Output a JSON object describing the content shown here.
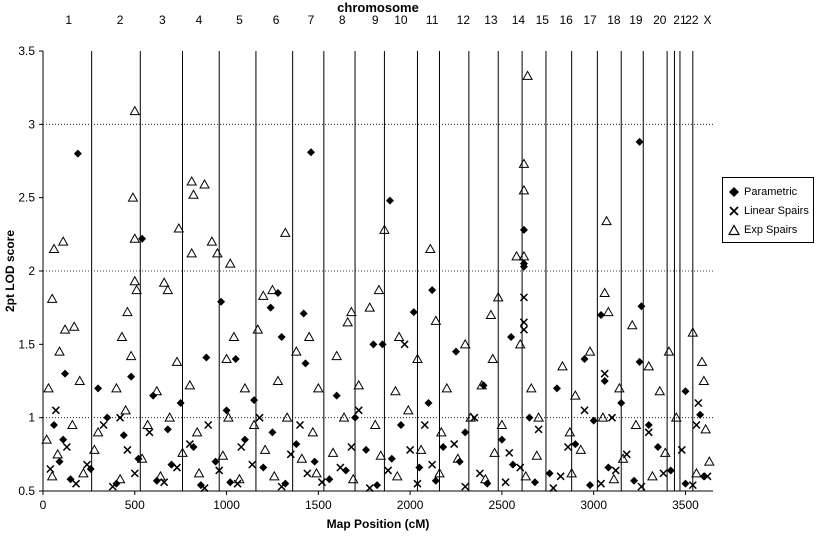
{
  "chart_data": {
    "type": "scatter",
    "title": "chromosome",
    "xlabel": "Map Position (cM)",
    "ylabel": "2pt LOD score",
    "xlim": [
      0,
      3650
    ],
    "ylim": [
      0.5,
      3.5
    ],
    "x_ticks": [
      0,
      500,
      1000,
      1500,
      2000,
      2500,
      3000,
      3500
    ],
    "y_ticks": [
      0.5,
      1,
      1.5,
      2,
      2.5,
      3,
      3.5
    ],
    "y_tick_labels": [
      "0.5",
      "1",
      "1.5",
      "2",
      "2.5",
      "3",
      "3.5"
    ],
    "gridlines_y": [
      1,
      2,
      3
    ],
    "grid_style": "dotted",
    "legend_position": "right",
    "chromosomes": {
      "labels": [
        "1",
        "2",
        "3",
        "4",
        "5",
        "6",
        "7",
        "8",
        "9",
        "10",
        "11",
        "12",
        "13",
        "14",
        "15",
        "16",
        "17",
        "18",
        "19",
        "20",
        "21",
        "22",
        "X"
      ],
      "label_positions": [
        140,
        420,
        650,
        850,
        1070,
        1270,
        1460,
        1630,
        1810,
        1950,
        2120,
        2290,
        2440,
        2590,
        2720,
        2850,
        2980,
        3110,
        3230,
        3360,
        3470,
        3535,
        3620
      ],
      "boundaries": [
        265,
        530,
        760,
        960,
        1160,
        1360,
        1530,
        1700,
        1860,
        2040,
        2160,
        2320,
        2480,
        2610,
        2740,
        2880,
        3020,
        3150,
        3270,
        3400,
        3440,
        3470,
        3540
      ]
    },
    "series": [
      {
        "name": "Parametric",
        "marker": "diamond",
        "color": "#000000",
        "points": [
          [
            190,
            2.8
          ],
          [
            540,
            2.22
          ],
          [
            1460,
            2.81
          ],
          [
            1890,
            2.48
          ],
          [
            2120,
            1.87
          ],
          [
            2620,
            2.28
          ],
          [
            2620,
            2.05
          ],
          [
            2620,
            2.03
          ],
          [
            3250,
            2.88
          ],
          [
            3260,
            1.76
          ],
          [
            1280,
            1.85
          ],
          [
            1240,
            1.75
          ],
          [
            970,
            1.79
          ],
          [
            1420,
            1.71
          ],
          [
            2020,
            1.72
          ],
          [
            3040,
            1.7
          ],
          [
            1300,
            1.55
          ],
          [
            1800,
            1.5
          ],
          [
            1850,
            1.5
          ],
          [
            120,
            1.3
          ],
          [
            480,
            1.28
          ],
          [
            890,
            1.41
          ],
          [
            1050,
            1.4
          ],
          [
            1430,
            1.37
          ],
          [
            2250,
            1.45
          ],
          [
            2550,
            1.55
          ],
          [
            2950,
            1.4
          ],
          [
            3060,
            1.25
          ],
          [
            3250,
            1.38
          ],
          [
            300,
            1.2
          ],
          [
            600,
            1.15
          ],
          [
            750,
            1.1
          ],
          [
            1150,
            1.12
          ],
          [
            1600,
            1.15
          ],
          [
            2100,
            1.1
          ],
          [
            2400,
            1.22
          ],
          [
            2800,
            1.2
          ],
          [
            3150,
            1.1
          ],
          [
            3500,
            1.18
          ],
          [
            60,
            0.95
          ],
          [
            350,
            1.0
          ],
          [
            680,
            0.92
          ],
          [
            1000,
            1.05
          ],
          [
            1250,
            0.9
          ],
          [
            1700,
            1.0
          ],
          [
            1950,
            0.95
          ],
          [
            2300,
            0.9
          ],
          [
            2650,
            1.0
          ],
          [
            3000,
            0.98
          ],
          [
            3300,
            0.95
          ],
          [
            3580,
            1.02
          ],
          [
            110,
            0.85
          ],
          [
            440,
            0.88
          ],
          [
            820,
            0.8
          ],
          [
            1100,
            0.85
          ],
          [
            1380,
            0.82
          ],
          [
            1760,
            0.78
          ],
          [
            2180,
            0.8
          ],
          [
            2500,
            0.85
          ],
          [
            2900,
            0.82
          ],
          [
            3350,
            0.8
          ],
          [
            90,
            0.7
          ],
          [
            260,
            0.65
          ],
          [
            520,
            0.72
          ],
          [
            700,
            0.68
          ],
          [
            940,
            0.7
          ],
          [
            1200,
            0.66
          ],
          [
            1480,
            0.7
          ],
          [
            1650,
            0.64
          ],
          [
            1900,
            0.72
          ],
          [
            2050,
            0.66
          ],
          [
            2270,
            0.7
          ],
          [
            2560,
            0.68
          ],
          [
            2760,
            0.62
          ],
          [
            3080,
            0.66
          ],
          [
            3420,
            0.64
          ],
          [
            3600,
            0.6
          ],
          [
            150,
            0.58
          ],
          [
            400,
            0.55
          ],
          [
            620,
            0.57
          ],
          [
            860,
            0.54
          ],
          [
            1020,
            0.56
          ],
          [
            1320,
            0.55
          ],
          [
            1560,
            0.58
          ],
          [
            1820,
            0.54
          ],
          [
            2140,
            0.57
          ],
          [
            2420,
            0.55
          ],
          [
            2680,
            0.56
          ],
          [
            2980,
            0.54
          ],
          [
            3220,
            0.57
          ],
          [
            3500,
            0.55
          ]
        ]
      },
      {
        "name": "Linear Spairs",
        "marker": "x",
        "color": "#000000",
        "points": [
          [
            2620,
            1.82
          ],
          [
            2620,
            1.65
          ],
          [
            2620,
            1.6
          ],
          [
            1970,
            1.5
          ],
          [
            3060,
            1.3
          ],
          [
            3570,
            1.1
          ],
          [
            3100,
            1.0
          ],
          [
            420,
            1.0
          ],
          [
            70,
            1.05
          ],
          [
            330,
            0.95
          ],
          [
            580,
            0.9
          ],
          [
            900,
            0.95
          ],
          [
            1180,
            1.0
          ],
          [
            1400,
            0.95
          ],
          [
            1720,
            1.05
          ],
          [
            2080,
            0.95
          ],
          [
            2350,
            1.0
          ],
          [
            2700,
            0.92
          ],
          [
            2950,
            1.05
          ],
          [
            3300,
            0.9
          ],
          [
            3560,
            0.95
          ],
          [
            130,
            0.8
          ],
          [
            460,
            0.78
          ],
          [
            800,
            0.82
          ],
          [
            1080,
            0.8
          ],
          [
            1350,
            0.75
          ],
          [
            1680,
            0.8
          ],
          [
            2000,
            0.78
          ],
          [
            2240,
            0.82
          ],
          [
            2540,
            0.76
          ],
          [
            2860,
            0.8
          ],
          [
            3180,
            0.75
          ],
          [
            3480,
            0.78
          ],
          [
            40,
            0.65
          ],
          [
            240,
            0.68
          ],
          [
            500,
            0.62
          ],
          [
            730,
            0.66
          ],
          [
            960,
            0.64
          ],
          [
            1140,
            0.68
          ],
          [
            1440,
            0.62
          ],
          [
            1620,
            0.66
          ],
          [
            1880,
            0.64
          ],
          [
            2120,
            0.68
          ],
          [
            2380,
            0.62
          ],
          [
            2600,
            0.66
          ],
          [
            2820,
            0.6
          ],
          [
            3120,
            0.64
          ],
          [
            3380,
            0.62
          ],
          [
            3620,
            0.6
          ],
          [
            180,
            0.55
          ],
          [
            380,
            0.53
          ],
          [
            660,
            0.56
          ],
          [
            880,
            0.52
          ],
          [
            1060,
            0.55
          ],
          [
            1300,
            0.53
          ],
          [
            1520,
            0.56
          ],
          [
            1780,
            0.52
          ],
          [
            2040,
            0.55
          ],
          [
            2300,
            0.53
          ],
          [
            2520,
            0.56
          ],
          [
            2780,
            0.52
          ],
          [
            3040,
            0.55
          ],
          [
            3260,
            0.53
          ],
          [
            3540,
            0.54
          ]
        ]
      },
      {
        "name": "Exp Spairs",
        "marker": "triangle",
        "color": "#000000",
        "points": [
          [
            2640,
            3.33
          ],
          [
            500,
            3.09
          ],
          [
            2620,
            2.73
          ],
          [
            2620,
            2.55
          ],
          [
            810,
            2.61
          ],
          [
            880,
            2.59
          ],
          [
            820,
            2.52
          ],
          [
            490,
            2.5
          ],
          [
            3070,
            2.34
          ],
          [
            740,
            2.29
          ],
          [
            1860,
            2.28
          ],
          [
            1320,
            2.26
          ],
          [
            500,
            2.22
          ],
          [
            920,
            2.2
          ],
          [
            110,
            2.2
          ],
          [
            60,
            2.15
          ],
          [
            2110,
            2.15
          ],
          [
            2580,
            2.1
          ],
          [
            2620,
            2.1
          ],
          [
            810,
            2.12
          ],
          [
            950,
            2.12
          ],
          [
            1020,
            2.05
          ],
          [
            660,
            1.92
          ],
          [
            680,
            1.87
          ],
          [
            500,
            1.93
          ],
          [
            510,
            1.87
          ],
          [
            1250,
            1.87
          ],
          [
            1830,
            1.87
          ],
          [
            1200,
            1.83
          ],
          [
            3060,
            1.85
          ],
          [
            2480,
            1.82
          ],
          [
            50,
            1.81
          ],
          [
            460,
            1.72
          ],
          [
            1780,
            1.75
          ],
          [
            1680,
            1.72
          ],
          [
            3080,
            1.72
          ],
          [
            2440,
            1.7
          ],
          [
            1660,
            1.65
          ],
          [
            2140,
            1.66
          ],
          [
            3210,
            1.63
          ],
          [
            3540,
            1.58
          ],
          [
            120,
            1.6
          ],
          [
            170,
            1.62
          ],
          [
            430,
            1.55
          ],
          [
            1040,
            1.55
          ],
          [
            1170,
            1.6
          ],
          [
            1450,
            1.55
          ],
          [
            1940,
            1.55
          ],
          [
            2300,
            1.5
          ],
          [
            2600,
            1.5
          ],
          [
            3410,
            1.45
          ],
          [
            90,
            1.45
          ],
          [
            480,
            1.42
          ],
          [
            730,
            1.38
          ],
          [
            1000,
            1.4
          ],
          [
            1380,
            1.45
          ],
          [
            1600,
            1.42
          ],
          [
            2040,
            1.4
          ],
          [
            2450,
            1.4
          ],
          [
            2830,
            1.35
          ],
          [
            2980,
            1.45
          ],
          [
            3300,
            1.35
          ],
          [
            3590,
            1.38
          ],
          [
            30,
            1.2
          ],
          [
            200,
            1.25
          ],
          [
            400,
            1.2
          ],
          [
            620,
            1.18
          ],
          [
            800,
            1.22
          ],
          [
            1100,
            1.2
          ],
          [
            1280,
            1.25
          ],
          [
            1500,
            1.2
          ],
          [
            1720,
            1.22
          ],
          [
            1920,
            1.18
          ],
          [
            2200,
            1.2
          ],
          [
            2390,
            1.22
          ],
          [
            2660,
            1.2
          ],
          [
            2900,
            1.15
          ],
          [
            3140,
            1.2
          ],
          [
            3360,
            1.18
          ],
          [
            3600,
            1.25
          ],
          [
            20,
            0.85
          ],
          [
            160,
            0.95
          ],
          [
            300,
            0.9
          ],
          [
            450,
            1.05
          ],
          [
            570,
            0.95
          ],
          [
            690,
            1.0
          ],
          [
            840,
            0.9
          ],
          [
            1010,
            1.0
          ],
          [
            1150,
            0.95
          ],
          [
            1330,
            1.0
          ],
          [
            1470,
            0.9
          ],
          [
            1640,
            1.0
          ],
          [
            1810,
            0.95
          ],
          [
            1990,
            1.05
          ],
          [
            2170,
            0.9
          ],
          [
            2330,
            1.0
          ],
          [
            2500,
            0.95
          ],
          [
            2700,
            1.0
          ],
          [
            2870,
            0.9
          ],
          [
            3050,
            1.0
          ],
          [
            3230,
            0.95
          ],
          [
            3450,
            1.0
          ],
          [
            3610,
            0.92
          ],
          [
            80,
            0.75
          ],
          [
            280,
            0.78
          ],
          [
            540,
            0.72
          ],
          [
            760,
            0.76
          ],
          [
            980,
            0.74
          ],
          [
            1210,
            0.78
          ],
          [
            1410,
            0.72
          ],
          [
            1580,
            0.76
          ],
          [
            1840,
            0.74
          ],
          [
            2060,
            0.78
          ],
          [
            2260,
            0.72
          ],
          [
            2460,
            0.76
          ],
          [
            2690,
            0.74
          ],
          [
            2930,
            0.78
          ],
          [
            3160,
            0.72
          ],
          [
            3390,
            0.76
          ],
          [
            3630,
            0.7
          ],
          [
            50,
            0.6
          ],
          [
            220,
            0.62
          ],
          [
            420,
            0.58
          ],
          [
            640,
            0.6
          ],
          [
            850,
            0.62
          ],
          [
            1070,
            0.58
          ],
          [
            1260,
            0.6
          ],
          [
            1490,
            0.62
          ],
          [
            1690,
            0.58
          ],
          [
            1930,
            0.6
          ],
          [
            2160,
            0.62
          ],
          [
            2410,
            0.58
          ],
          [
            2630,
            0.6
          ],
          [
            2880,
            0.62
          ],
          [
            3110,
            0.58
          ],
          [
            3320,
            0.6
          ],
          [
            3560,
            0.62
          ]
        ]
      }
    ]
  }
}
